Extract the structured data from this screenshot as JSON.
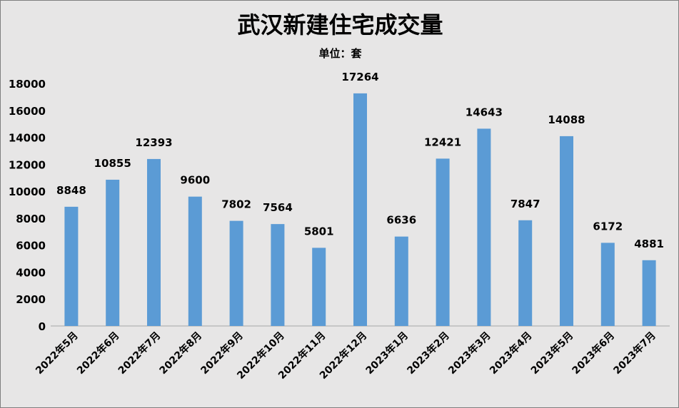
{
  "chart_data": {
    "type": "bar",
    "title": "武汉新建住宅成交量",
    "subtitle": "单位：套",
    "categories": [
      "2022年5月",
      "2022年6月",
      "2022年7月",
      "2022年8月",
      "2022年9月",
      "2022年10月",
      "2022年11月",
      "2022年12月",
      "2023年1月",
      "2023年2月",
      "2023年3月",
      "2023年4月",
      "2023年5月",
      "2023年6月",
      "2023年7月"
    ],
    "values": [
      8848,
      10855,
      12393,
      9600,
      7802,
      7564,
      5801,
      17264,
      6636,
      12421,
      14643,
      7847,
      14088,
      6172,
      4881
    ],
    "y_ticks": [
      "0",
      "2000",
      "4000",
      "6000",
      "8000",
      "10000",
      "12000",
      "14000",
      "16000",
      "18000"
    ],
    "ylim": [
      0,
      18000
    ],
    "grid": false,
    "legend": "none",
    "bar_color": "#5b9bd5",
    "background_color": "#e7e6e6"
  }
}
